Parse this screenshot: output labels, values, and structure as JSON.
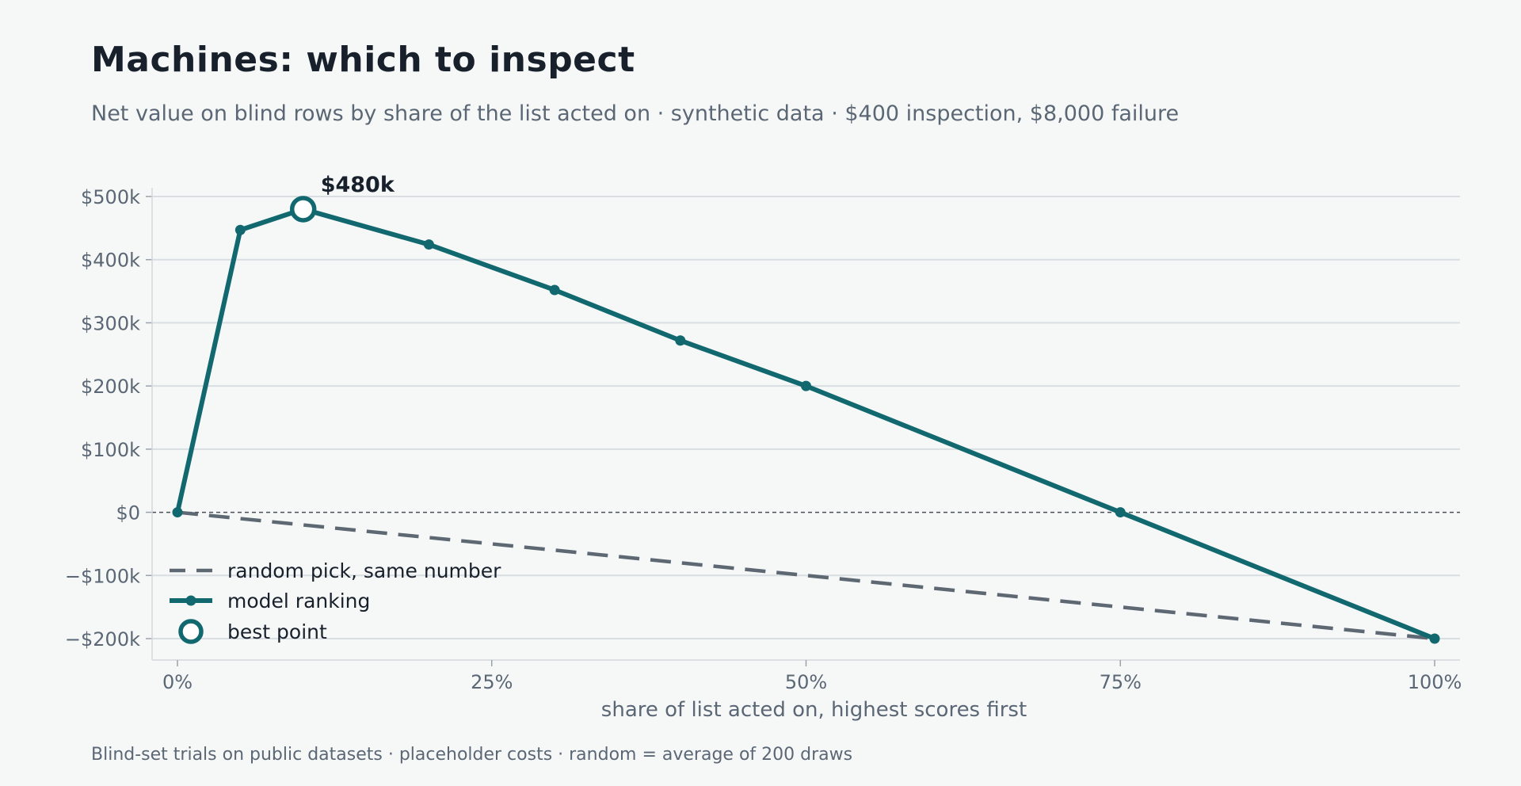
{
  "title": "Machines: which to inspect",
  "subtitle": "Net value on blind rows by share of the list acted on · synthetic data · $400 inspection, $8,000 failure",
  "footnote": "Blind-set trials on public datasets · placeholder costs · random = average of 200 draws",
  "colors": {
    "background": "#f6f8f8",
    "model": "#12686f",
    "random": "#5e6873",
    "grid": "#d9dee2",
    "zero_line": "#4a4f55",
    "text_dark": "#17202b",
    "text_muted": "#5b6775"
  },
  "chart_data": {
    "type": "line",
    "xlabel": "share of list acted on, highest scores first",
    "ylabel": "",
    "xlim": [
      0,
      100
    ],
    "ylim": [
      -200000,
      500000
    ],
    "x_ticks": [
      0,
      25,
      50,
      75,
      100
    ],
    "x_tick_labels": [
      "0%",
      "25%",
      "50%",
      "75%",
      "100%"
    ],
    "y_ticks": [
      -200000,
      -100000,
      0,
      100000,
      200000,
      300000,
      400000,
      500000
    ],
    "y_tick_labels": [
      "−$200k",
      "−$100k",
      "$0",
      "$100k",
      "$200k",
      "$300k",
      "$400k",
      "$500k"
    ],
    "grid": "horizontal",
    "legend_position": "bottom-left",
    "series": [
      {
        "name": "random pick, same number",
        "style": "dashed",
        "x": [
          0,
          100
        ],
        "y": [
          0,
          -200000
        ]
      },
      {
        "name": "model ranking",
        "style": "solid-markers",
        "x": [
          0,
          5,
          10,
          20,
          30,
          40,
          50,
          75,
          100
        ],
        "y": [
          0,
          447000,
          480000,
          424000,
          352000,
          272000,
          200000,
          0,
          -200000
        ]
      }
    ],
    "best_point": {
      "legend": "best point",
      "x": 10,
      "y": 480000,
      "label": "$480k"
    }
  }
}
